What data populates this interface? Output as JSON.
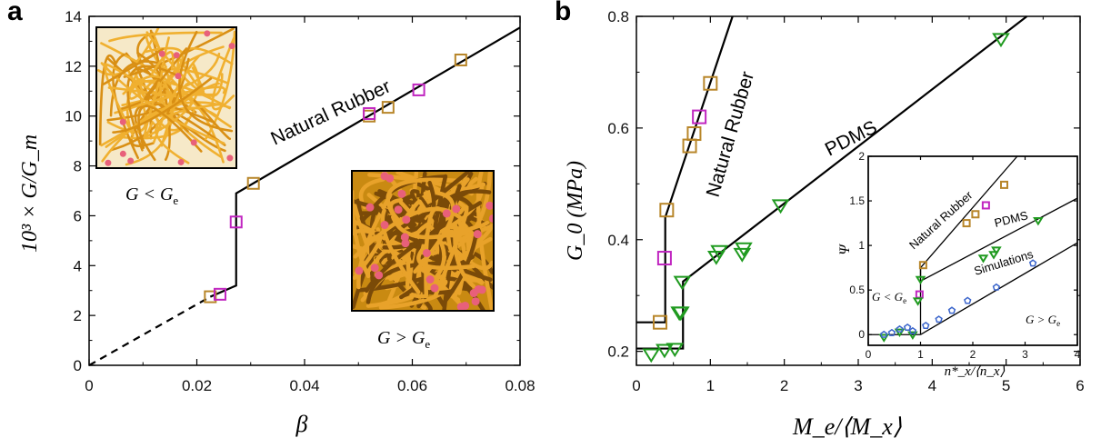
{
  "chart_data": [
    {
      "panel": "a",
      "type": "scatter",
      "xlabel": "β",
      "ylabel": "10³ × G/G_m",
      "xlim": [
        0,
        0.08
      ],
      "ylim": [
        0,
        14
      ],
      "xticks": [
        "0",
        "0.02",
        "0.04",
        "0.06",
        "0.08"
      ],
      "yticks": [
        "0",
        "2",
        "4",
        "6",
        "8",
        "10",
        "12",
        "14"
      ],
      "annotations": {
        "curve_label": "Natural Rubber",
        "inset1": "G < G",
        "inset2": "G > G",
        "sub": "e"
      },
      "series": [
        {
          "marker": "square",
          "color": "#b8862a",
          "x": [
            0.0225,
            0.0305,
            0.052,
            0.0555,
            0.069
          ],
          "y": [
            2.75,
            7.3,
            10.0,
            10.35,
            12.25
          ]
        },
        {
          "marker": "square",
          "color": "#c026c0",
          "x": [
            0.0243,
            0.0273,
            0.052,
            0.0612
          ],
          "y": [
            2.85,
            5.75,
            10.1,
            11.05
          ]
        }
      ],
      "fit": {
        "dashed": [
          [
            0,
            0
          ],
          [
            0.0225,
            2.75
          ]
        ],
        "solid": [
          [
            0.0225,
            2.75
          ],
          [
            0.0273,
            3.2
          ],
          [
            0.0273,
            6.9
          ],
          [
            0.08,
            13.55
          ]
        ]
      }
    },
    {
      "panel": "b",
      "type": "scatter",
      "xlabel": "M_e/⟨M_x⟩",
      "ylabel": "G_0 (MPa)",
      "xlim": [
        0,
        6
      ],
      "ylim": [
        0.175,
        0.8
      ],
      "xticks": [
        "0",
        "1",
        "2",
        "3",
        "4",
        "5",
        "6"
      ],
      "yticks": [
        "0.2",
        "0.4",
        "0.6",
        "0.8"
      ],
      "annotations": {
        "nr_label": "Natural Rubber",
        "pdms_label": "PDMS"
      },
      "series": [
        {
          "marker": "square",
          "color": "#b8862a",
          "x": [
            0.32,
            0.41,
            0.72,
            0.78,
            1.0
          ],
          "y": [
            0.252,
            0.453,
            0.568,
            0.59,
            0.68
          ]
        },
        {
          "marker": "square",
          "color": "#c026c0",
          "x": [
            0.38,
            0.85
          ],
          "y": [
            0.367,
            0.62
          ]
        },
        {
          "marker": "triangle",
          "color": "#1f9a1f",
          "x": [
            0.2,
            0.38,
            0.52,
            0.58,
            0.6,
            0.62,
            1.08,
            1.12,
            1.43,
            1.45,
            1.95,
            4.93
          ],
          "y": [
            0.195,
            0.203,
            0.205,
            0.27,
            0.27,
            0.325,
            0.37,
            0.38,
            0.375,
            0.385,
            0.462,
            0.76
          ]
        }
      ],
      "fit": {
        "nr": [
          [
            0,
            0.252
          ],
          [
            0.39,
            0.252
          ],
          [
            0.39,
            0.44
          ],
          [
            1.3,
            0.8
          ]
        ],
        "pdms": [
          [
            0,
            0.205
          ],
          [
            0.63,
            0.205
          ],
          [
            0.63,
            0.325
          ],
          [
            5.28,
            0.8
          ]
        ]
      }
    },
    {
      "panel": "b-inset",
      "type": "scatter",
      "xlabel": "n*_x/⟨n_x⟩",
      "ylabel": "Ψ",
      "xlim": [
        0,
        4
      ],
      "ylim": [
        -0.12,
        2.0
      ],
      "xticks": [
        "0",
        "1",
        "2",
        "3",
        "4"
      ],
      "yticks": [
        "0",
        "0.5",
        "1",
        "1.5",
        "2"
      ],
      "annotations": {
        "nr": "Natural Rubber",
        "pdms": "PDMS",
        "sim": "Simulations",
        "left": "G < G",
        "right": "G > G",
        "sub": "e"
      },
      "series": [
        {
          "marker": "square",
          "color": "#b8862a",
          "x": [
            1.05,
            1.88,
            2.05,
            2.6
          ],
          "y": [
            0.78,
            1.25,
            1.35,
            1.68
          ]
        },
        {
          "marker": "square",
          "color": "#c026c0",
          "x": [
            0.98,
            2.25
          ],
          "y": [
            0.45,
            1.45
          ]
        },
        {
          "marker": "triangle",
          "color": "#1f9a1f",
          "x": [
            0.3,
            0.6,
            0.85,
            0.95,
            1.0,
            2.2,
            2.4,
            2.45,
            3.25
          ],
          "y": [
            -0.03,
            0.03,
            0.0,
            0.38,
            0.62,
            0.86,
            0.9,
            0.95,
            1.28
          ]
        },
        {
          "marker": "pentagon",
          "color": "#3c66cc",
          "x": [
            0.3,
            0.45,
            0.6,
            0.75,
            0.85,
            1.1,
            1.35,
            1.6,
            1.9,
            2.45,
            3.15
          ],
          "y": [
            0.0,
            0.02,
            0.06,
            0.08,
            0.04,
            0.1,
            0.17,
            0.27,
            0.38,
            0.53,
            0.8
          ]
        }
      ],
      "fit": {
        "base": [
          [
            0,
            0
          ],
          [
            1,
            0
          ]
        ],
        "nr": [
          [
            1,
            0.62
          ],
          [
            1,
            0.75
          ],
          [
            2.85,
            2.0
          ]
        ],
        "pdms": [
          [
            1,
            0.6
          ],
          [
            4,
            1.53
          ]
        ],
        "sim": [
          [
            1,
            0.0
          ],
          [
            4,
            1.03
          ]
        ]
      }
    }
  ]
}
